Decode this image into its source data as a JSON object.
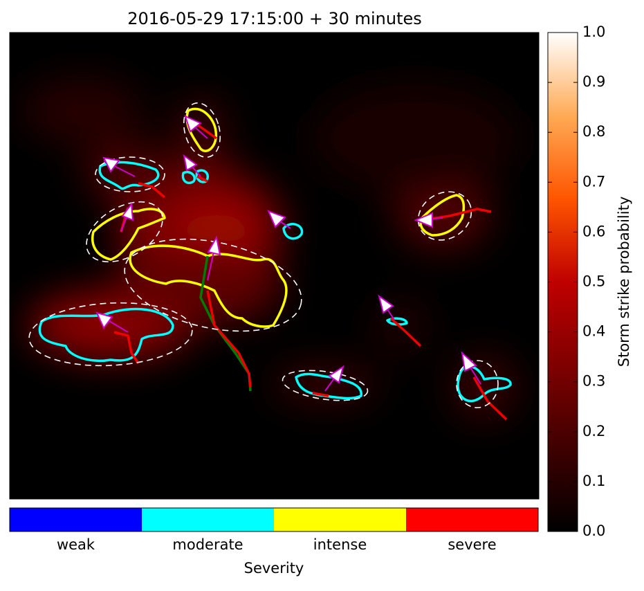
{
  "chart_data": {
    "type": "heatmap",
    "title": "2016-05-29 17:15:00 + 30 minutes",
    "colorbar": {
      "label": "Storm strike probability",
      "lim": [
        0,
        1
      ],
      "ticks": [
        {
          "value": 0,
          "label": "0.0"
        },
        0.1,
        0.2,
        0.3,
        0.4,
        0.5,
        0.6,
        0.7,
        0.8,
        0.9,
        {
          "value": 1,
          "label": "1.0"
        }
      ]
    },
    "severity": {
      "label": "Severity",
      "categories": [
        "weak",
        "moderate",
        "intense",
        "severe"
      ],
      "colors": [
        "#0000ff",
        "#00ffff",
        "#ffff00",
        "#ff0000"
      ]
    }
  }
}
